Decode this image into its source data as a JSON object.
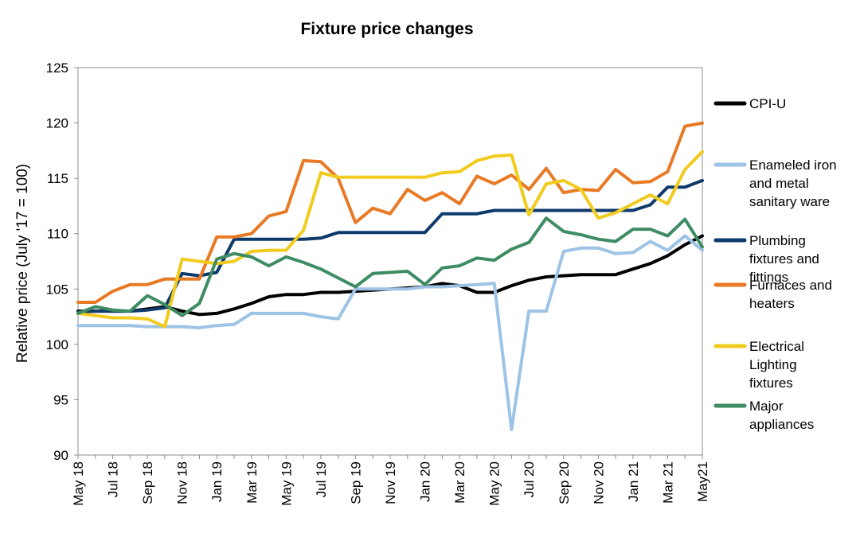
{
  "chart_data": {
    "type": "line",
    "title": "Fixture price changes",
    "xlabel": "",
    "ylabel": "Relative price (July '17 = 100)",
    "ylim": [
      90,
      125
    ],
    "yticks": [
      90,
      95,
      100,
      105,
      110,
      115,
      120,
      125
    ],
    "xtick_labels": [
      "May 18",
      "Jul 18",
      "Sep 18",
      "Nov 18",
      "Jan 19",
      "Mar 19",
      "May 19",
      "Jul 19",
      "Sep 19",
      "Nov 19",
      "Jan 20",
      "Mar 20",
      "May 20",
      "Jul 20",
      "Sep 20",
      "Nov 20",
      "Jan 21",
      "Mar 21",
      "May21"
    ],
    "x": [
      "May 18",
      "Jun 18",
      "Jul 18",
      "Aug 18",
      "Sep 18",
      "Oct 18",
      "Nov 18",
      "Dec 18",
      "Jan 19",
      "Feb 19",
      "Mar 19",
      "Apr 19",
      "May 19",
      "Jun 19",
      "Jul 19",
      "Aug 19",
      "Sep 19",
      "Oct 19",
      "Nov 19",
      "Dec 19",
      "Jan 20",
      "Feb 20",
      "Mar 20",
      "Apr 20",
      "May 20",
      "Jun 20",
      "Jul 20",
      "Aug 20",
      "Sep 20",
      "Oct 20",
      "Nov 20",
      "Dec 20",
      "Jan 21",
      "Feb 21",
      "Mar 21",
      "Apr 21",
      "May21"
    ],
    "grid": false,
    "legend_position": "right",
    "series": [
      {
        "name": "CPI-U",
        "color": "#000000",
        "values": [
          103.0,
          103.0,
          103.0,
          103.0,
          103.2,
          103.4,
          103.0,
          102.7,
          102.8,
          103.2,
          103.7,
          104.3,
          104.5,
          104.5,
          104.7,
          104.7,
          104.8,
          104.9,
          105.0,
          105.1,
          105.2,
          105.5,
          105.3,
          104.7,
          104.7,
          105.3,
          105.8,
          106.1,
          106.2,
          106.3,
          106.3,
          106.3,
          106.8,
          107.3,
          108.0,
          109.0,
          109.8
        ]
      },
      {
        "name": "Enameled iron and metal sanitary ware",
        "color": "#9dc3e6",
        "values": [
          101.7,
          101.7,
          101.7,
          101.7,
          101.6,
          101.6,
          101.6,
          101.5,
          101.7,
          101.8,
          102.8,
          102.8,
          102.8,
          102.8,
          102.5,
          102.3,
          105.0,
          105.0,
          105.0,
          105.0,
          105.2,
          105.2,
          105.3,
          105.4,
          105.5,
          92.3,
          103.0,
          103.0,
          108.4,
          108.7,
          108.7,
          108.2,
          108.3,
          109.3,
          108.5,
          109.8,
          108.5
        ]
      },
      {
        "name": "Plumbing fixtures and fittings",
        "color": "#0e3a6b",
        "values": [
          102.9,
          103.0,
          103.0,
          103.0,
          103.1,
          103.3,
          106.4,
          106.2,
          106.5,
          109.5,
          109.5,
          109.5,
          109.5,
          109.5,
          109.6,
          110.1,
          110.1,
          110.1,
          110.1,
          110.1,
          110.1,
          111.8,
          111.8,
          111.8,
          112.1,
          112.1,
          112.1,
          112.1,
          112.1,
          112.1,
          112.1,
          112.1,
          112.1,
          112.6,
          114.2,
          114.2,
          114.8
        ]
      },
      {
        "name": "Furnaces and heaters",
        "color": "#e97a25",
        "values": [
          103.8,
          103.8,
          104.8,
          105.4,
          105.4,
          105.9,
          105.9,
          105.9,
          109.7,
          109.7,
          110.0,
          111.6,
          112.0,
          116.6,
          116.5,
          115.0,
          111.0,
          112.3,
          111.8,
          114.0,
          113.0,
          113.7,
          112.7,
          115.2,
          114.5,
          115.3,
          114.0,
          115.9,
          113.7,
          114.0,
          113.9,
          115.8,
          114.6,
          114.7,
          115.6,
          119.7,
          120.0
        ]
      },
      {
        "name": "Electrical Lighting fixtures",
        "color": "#f1cb1d",
        "values": [
          102.8,
          102.6,
          102.4,
          102.4,
          102.3,
          101.6,
          107.7,
          107.5,
          107.3,
          107.5,
          108.4,
          108.5,
          108.5,
          110.3,
          115.5,
          115.1,
          115.1,
          115.1,
          115.1,
          115.1,
          115.1,
          115.5,
          115.6,
          116.6,
          117.0,
          117.1,
          111.7,
          114.5,
          114.8,
          114.0,
          111.4,
          111.9,
          112.7,
          113.5,
          112.7,
          115.8,
          117.4
        ]
      },
      {
        "name": "Major appliances",
        "color": "#3e8c63",
        "values": [
          102.8,
          103.4,
          103.1,
          103.0,
          104.4,
          103.6,
          102.6,
          103.7,
          107.7,
          108.2,
          107.9,
          107.1,
          107.9,
          107.4,
          106.8,
          106.0,
          105.2,
          106.4,
          106.5,
          106.6,
          105.4,
          106.9,
          107.1,
          107.8,
          107.6,
          108.6,
          109.2,
          111.4,
          110.2,
          109.9,
          109.5,
          109.3,
          110.4,
          110.4,
          109.8,
          111.3,
          108.8
        ]
      }
    ]
  },
  "legend": [
    {
      "name": "CPI-U",
      "lines": [
        "CPI-U"
      ]
    },
    {
      "name": "Enameled iron and metal sanitary ware",
      "lines": [
        "Enameled iron",
        "and metal",
        "sanitary ware"
      ]
    },
    {
      "name": "Plumbing fixtures and fittings",
      "lines": [
        "Plumbing",
        "fixtures and",
        "fittings"
      ]
    },
    {
      "name": "Furnaces and heaters",
      "lines": [
        "Furnaces and",
        "heaters"
      ]
    },
    {
      "name": "Electrical Lighting fixtures",
      "lines": [
        "Electrical",
        "Lighting",
        "fixtures"
      ]
    },
    {
      "name": "Major appliances",
      "lines": [
        "Major",
        "appliances"
      ]
    }
  ]
}
